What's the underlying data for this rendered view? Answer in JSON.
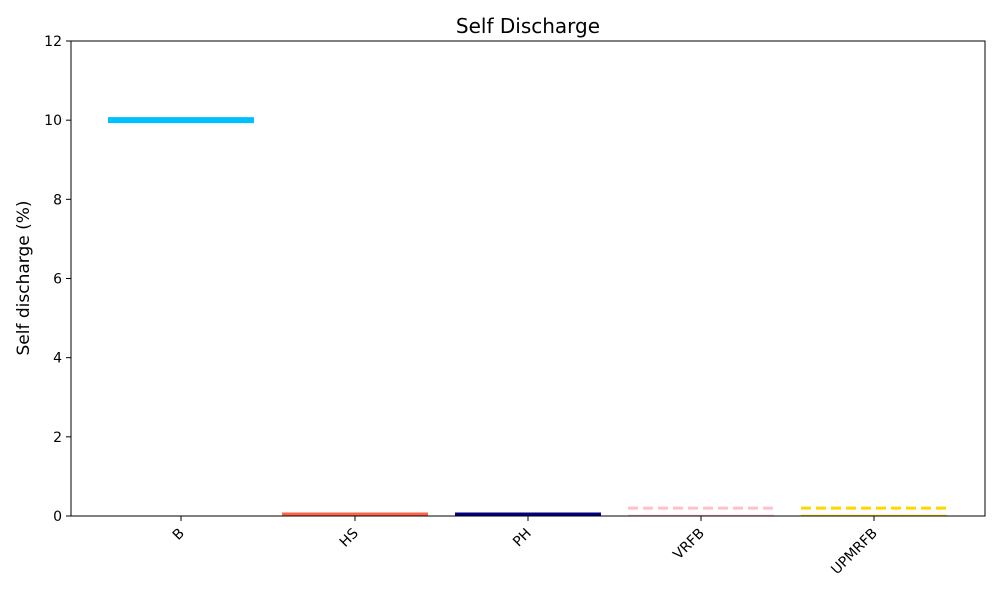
{
  "chart_data": {
    "type": "line",
    "title": "Self Discharge",
    "xlabel": "",
    "ylabel": "Self discharge (%)",
    "ylim": [
      0,
      12
    ],
    "yticks": [
      0,
      2,
      4,
      6,
      8,
      10,
      12
    ],
    "categories": [
      "B",
      "HS",
      "PH",
      "VRFB",
      "UPMRFB"
    ],
    "series": [
      {
        "category": "B",
        "value": 10,
        "color": "#00bfff",
        "style": "solid"
      },
      {
        "category": "HS",
        "value": 0.05,
        "color": "#ff6347",
        "style": "solid"
      },
      {
        "category": "PH",
        "value": 0.05,
        "color": "#000080",
        "style": "solid"
      },
      {
        "category": "VRFB",
        "value": 0.2,
        "color": "#ffc0cb",
        "style": "dashed"
      },
      {
        "category": "UPMRFB",
        "value": 0.2,
        "color": "#ffd700",
        "style": "dashed"
      }
    ],
    "baseline_lines": [
      {
        "category": "VRFB",
        "value": 0,
        "color": "#ffc0cb"
      },
      {
        "category": "UPMRFB",
        "value": 0,
        "color": "#ffd700"
      }
    ],
    "grid": false,
    "legend": "none"
  }
}
